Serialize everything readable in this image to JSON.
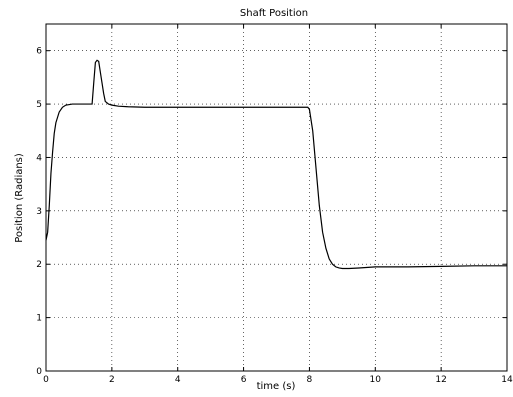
{
  "chart_data": {
    "type": "line",
    "title": "Shaft Position",
    "xlabel": "time (s)",
    "ylabel": "Position (Radians)",
    "xlim": [
      0,
      14
    ],
    "ylim": [
      0,
      6.5
    ],
    "xticks": [
      0,
      2,
      4,
      6,
      8,
      10,
      12,
      14
    ],
    "yticks": [
      0,
      1,
      2,
      3,
      4,
      5,
      6
    ],
    "xtick_labels": [
      "0",
      "2",
      "4",
      "6",
      "8",
      "10",
      "12",
      "14"
    ],
    "ytick_labels": [
      "0",
      "1",
      "2",
      "3",
      "4",
      "5",
      "6"
    ],
    "grid": true,
    "series": [
      {
        "x": [
          0,
          0.05,
          0.1,
          0.15,
          0.2,
          0.25,
          0.3,
          0.4,
          0.5,
          0.6,
          0.8,
          1.0,
          1.2,
          1.4,
          1.45,
          1.5,
          1.55,
          1.6,
          1.65,
          1.7,
          1.75,
          1.8,
          1.9,
          2.0,
          2.2,
          2.5,
          3.0,
          4.0,
          5.0,
          6.0,
          7.0,
          7.95,
          8.0,
          8.1,
          8.2,
          8.3,
          8.4,
          8.5,
          8.6,
          8.7,
          8.8,
          8.9,
          9.0,
          9.2,
          9.5,
          10.0,
          11.0,
          12.0,
          13.0,
          14.0
        ],
        "y": [
          2.45,
          2.6,
          3.1,
          3.7,
          4.1,
          4.45,
          4.65,
          4.85,
          4.94,
          4.98,
          5.0,
          5.0,
          5.0,
          5.0,
          5.4,
          5.78,
          5.82,
          5.8,
          5.6,
          5.4,
          5.2,
          5.05,
          5.0,
          4.98,
          4.96,
          4.95,
          4.94,
          4.94,
          4.94,
          4.94,
          4.94,
          4.94,
          4.9,
          4.5,
          3.8,
          3.1,
          2.6,
          2.3,
          2.1,
          2.0,
          1.95,
          1.93,
          1.92,
          1.92,
          1.93,
          1.95,
          1.95,
          1.96,
          1.97,
          1.97
        ]
      }
    ]
  }
}
